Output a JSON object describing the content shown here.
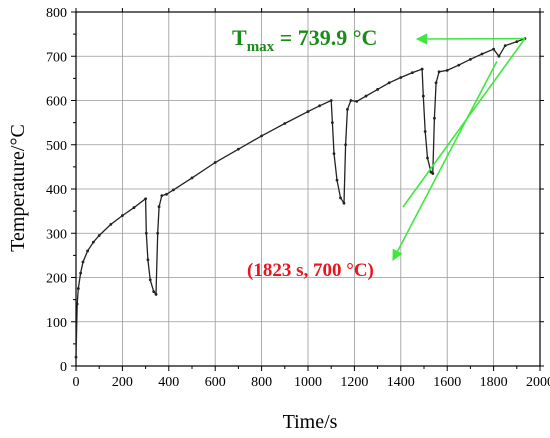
{
  "chart_data": {
    "type": "line",
    "xlabel": "Time/s",
    "ylabel": "Temperature/°C",
    "xlim": [
      0,
      2000
    ],
    "ylim": [
      0,
      800
    ],
    "x_ticks": [
      0,
      200,
      400,
      600,
      800,
      1000,
      1200,
      1400,
      1600,
      1800,
      2000
    ],
    "y_ticks": [
      0,
      100,
      200,
      300,
      400,
      500,
      600,
      700,
      800
    ],
    "grid": true,
    "series": [
      {
        "color": "#222222",
        "points": [
          [
            0,
            20
          ],
          [
            5,
            140
          ],
          [
            10,
            175
          ],
          [
            20,
            210
          ],
          [
            30,
            235
          ],
          [
            50,
            260
          ],
          [
            75,
            280
          ],
          [
            100,
            295
          ],
          [
            150,
            320
          ],
          [
            200,
            340
          ],
          [
            250,
            358
          ],
          [
            300,
            378
          ],
          [
            303,
            300
          ],
          [
            310,
            240
          ],
          [
            320,
            195
          ],
          [
            335,
            168
          ],
          [
            345,
            162
          ],
          [
            352,
            300
          ],
          [
            358,
            360
          ],
          [
            370,
            385
          ],
          [
            390,
            388
          ],
          [
            420,
            398
          ],
          [
            500,
            425
          ],
          [
            600,
            460
          ],
          [
            700,
            490
          ],
          [
            800,
            520
          ],
          [
            900,
            548
          ],
          [
            1000,
            575
          ],
          [
            1050,
            588
          ],
          [
            1100,
            600
          ],
          [
            1105,
            550
          ],
          [
            1112,
            480
          ],
          [
            1125,
            420
          ],
          [
            1140,
            380
          ],
          [
            1155,
            368
          ],
          [
            1162,
            500
          ],
          [
            1170,
            580
          ],
          [
            1185,
            600
          ],
          [
            1210,
            598
          ],
          [
            1250,
            610
          ],
          [
            1300,
            625
          ],
          [
            1350,
            640
          ],
          [
            1400,
            652
          ],
          [
            1450,
            663
          ],
          [
            1492,
            671
          ],
          [
            1497,
            610
          ],
          [
            1505,
            530
          ],
          [
            1515,
            470
          ],
          [
            1530,
            438
          ],
          [
            1538,
            435
          ],
          [
            1545,
            560
          ],
          [
            1552,
            640
          ],
          [
            1565,
            665
          ],
          [
            1600,
            668
          ],
          [
            1650,
            680
          ],
          [
            1700,
            693
          ],
          [
            1750,
            705
          ],
          [
            1800,
            716
          ],
          [
            1823,
            700
          ],
          [
            1850,
            724
          ],
          [
            1900,
            733
          ],
          [
            1935,
            739.9
          ]
        ]
      }
    ],
    "annotations": [
      {
        "id": "tmax",
        "text_main": "T",
        "text_sub": "max",
        "text_rest": " = 739.9 °C",
        "color": "#1a8c1a",
        "points_to": [
          1935,
          739.9
        ]
      },
      {
        "id": "point",
        "text": "(1823 s, 700 °C)",
        "color": "#e8141e",
        "points_to": [
          1823,
          700
        ],
        "arrow_color": "#3fe83f"
      }
    ]
  }
}
